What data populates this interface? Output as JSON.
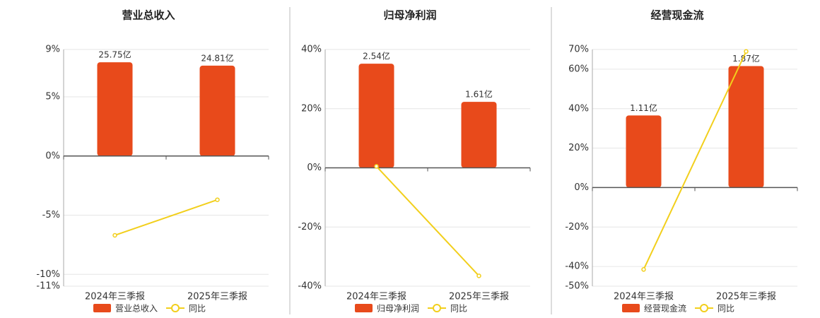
{
  "chart_data": [
    {
      "type": "combo",
      "title": "营业总收入",
      "categories": [
        "2024年三季报",
        "2025年三季报"
      ],
      "series": [
        {
          "name": "营业总收入",
          "color": "#e84a1b",
          "values": [
            25.75,
            24.81
          ],
          "value_labels": [
            "25.75亿",
            "24.81亿"
          ]
        },
        {
          "name": "同比",
          "color": "#f2cf1c",
          "values": [
            -6.7,
            -3.7
          ]
        }
      ],
      "ylim": [
        -11,
        9
      ],
      "yticks": [
        {
          "value": -11,
          "label": "-11%"
        },
        {
          "value": -10,
          "label": "-10%"
        },
        {
          "value": -5,
          "label": "-5%"
        },
        {
          "value": 0,
          "label": "0%"
        },
        {
          "value": 5,
          "label": "5%"
        },
        {
          "value": 9,
          "label": "9%"
        }
      ],
      "grid": true
    },
    {
      "type": "combo",
      "title": "归母净利润",
      "categories": [
        "2024年三季报",
        "2025年三季报"
      ],
      "series": [
        {
          "name": "归母净利润",
          "color": "#e84a1b",
          "values": [
            2.54,
            1.61
          ],
          "value_labels": [
            "2.54亿",
            "1.61亿"
          ]
        },
        {
          "name": "同比",
          "color": "#f2cf1c",
          "values": [
            0.5,
            -36.5
          ]
        }
      ],
      "ylim": [
        -40,
        40
      ],
      "yticks": [
        {
          "value": -40,
          "label": "-40%"
        },
        {
          "value": -20,
          "label": "-20%"
        },
        {
          "value": 0,
          "label": "0%"
        },
        {
          "value": 20,
          "label": "20%"
        },
        {
          "value": 40,
          "label": "40%"
        }
      ],
      "grid": true
    },
    {
      "type": "combo",
      "title": "经营现金流",
      "categories": [
        "2024年三季报",
        "2025年三季报"
      ],
      "series": [
        {
          "name": "经营现金流",
          "color": "#e84a1b",
          "values": [
            1.11,
            1.87
          ],
          "value_labels": [
            "1.11亿",
            "1.87亿"
          ]
        },
        {
          "name": "同比",
          "color": "#f2cf1c",
          "values": [
            -41.5,
            69
          ]
        }
      ],
      "ylim": [
        -50,
        70
      ],
      "yticks": [
        {
          "value": -50,
          "label": "-50%"
        },
        {
          "value": -40,
          "label": "-40%"
        },
        {
          "value": -20,
          "label": "-20%"
        },
        {
          "value": 0,
          "label": "0%"
        },
        {
          "value": 20,
          "label": "20%"
        },
        {
          "value": 40,
          "label": "40%"
        },
        {
          "value": 60,
          "label": "60%"
        },
        {
          "value": 70,
          "label": "70%"
        }
      ],
      "grid": true
    }
  ]
}
